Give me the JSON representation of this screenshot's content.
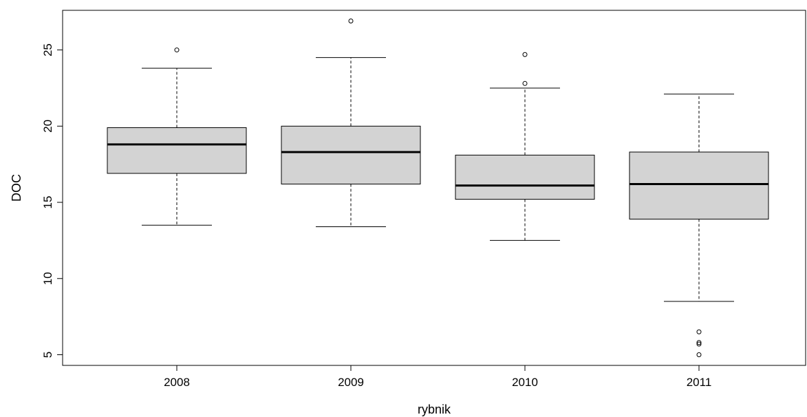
{
  "chart_data": {
    "type": "boxplot",
    "xlabel": "rybnik",
    "ylabel": "DOC",
    "categories": [
      "2008",
      "2009",
      "2010",
      "2011"
    ],
    "ylim": [
      4.3,
      27.6
    ],
    "yticks": [
      5,
      10,
      15,
      20,
      25
    ],
    "boxes": [
      {
        "category": "2008",
        "whisker_low": 13.5,
        "q1": 16.9,
        "median": 18.8,
        "q3": 19.9,
        "whisker_high": 23.8,
        "outliers": [
          25.0
        ]
      },
      {
        "category": "2009",
        "whisker_low": 13.4,
        "q1": 16.2,
        "median": 18.3,
        "q3": 20.0,
        "whisker_high": 24.5,
        "outliers": [
          26.9
        ]
      },
      {
        "category": "2010",
        "whisker_low": 12.5,
        "q1": 15.2,
        "median": 16.1,
        "q3": 18.1,
        "whisker_high": 22.5,
        "outliers": [
          22.8,
          24.7
        ]
      },
      {
        "category": "2011",
        "whisker_low": 8.5,
        "q1": 13.9,
        "median": 16.2,
        "q3": 18.3,
        "whisker_high": 22.1,
        "outliers": [
          6.5,
          5.8,
          5.7,
          5.0
        ]
      }
    ],
    "box_fill": "#d3d3d3",
    "line_color": "#000000"
  }
}
